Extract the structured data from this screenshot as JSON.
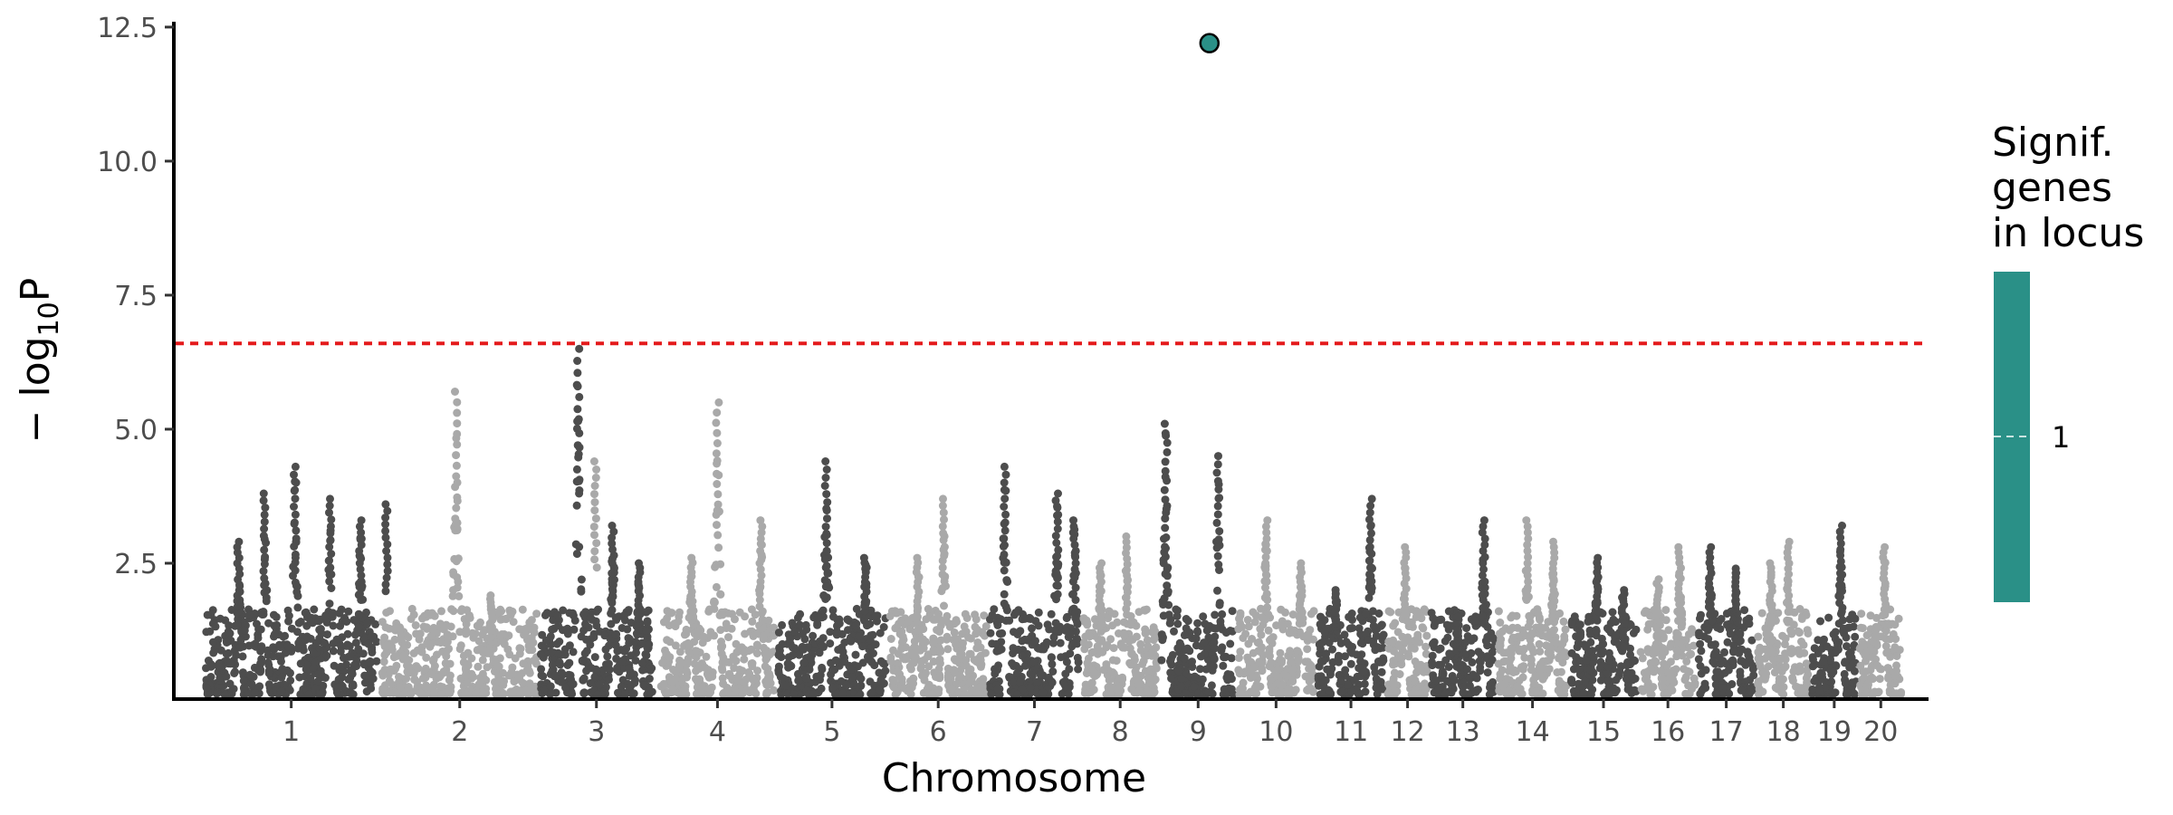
{
  "chart_data": {
    "type": "scatter",
    "subtype": "manhattan",
    "xlabel": "Chromosome",
    "ylabel_main": "− log",
    "ylabel_sub": "10",
    "ylabel_tail": "P",
    "ylim": [
      0,
      12.6
    ],
    "yticks": [
      2.5,
      5.0,
      7.5,
      10.0,
      12.5
    ],
    "ytick_labels": [
      "2.5",
      "5.0",
      "7.5",
      "10.0",
      "12.5"
    ],
    "significance_threshold": 6.6,
    "threshold_color": "#e41a1c",
    "colors": {
      "dark": "#4d4d4d",
      "light": "#a9a9a9",
      "highlight": "#2a9087"
    },
    "chromosomes": [
      {
        "label": "1",
        "start": 0.02,
        "end": 1.99,
        "peaks": [
          [
            0.7,
            3.8
          ],
          [
            1.05,
            4.3
          ],
          [
            1.45,
            3.7
          ],
          [
            1.8,
            3.3
          ],
          [
            2.1,
            3.6
          ],
          [
            0.4,
            2.9
          ]
        ]
      },
      {
        "label": "2",
        "start": 2.05,
        "end": 3.83,
        "peaks": [
          [
            2.9,
            5.7
          ],
          [
            4.5,
            4.4
          ],
          [
            3.3,
            1.9
          ]
        ]
      },
      {
        "label": "3",
        "start": 3.87,
        "end": 5.15,
        "peaks": [
          [
            4.3,
            6.5
          ],
          [
            4.7,
            3.2
          ],
          [
            5.0,
            2.5
          ]
        ]
      },
      {
        "label": "4",
        "start": 5.25,
        "end": 6.55,
        "peaks": [
          [
            5.9,
            5.5
          ],
          [
            6.4,
            3.3
          ],
          [
            5.6,
            2.6
          ]
        ]
      },
      {
        "label": "5",
        "start": 6.6,
        "end": 7.83,
        "peaks": [
          [
            7.15,
            4.4
          ],
          [
            7.6,
            2.6
          ]
        ]
      },
      {
        "label": "6",
        "start": 7.88,
        "end": 8.99,
        "peaks": [
          [
            8.5,
            3.7
          ],
          [
            8.2,
            2.6
          ]
        ]
      },
      {
        "label": "7",
        "start": 9.03,
        "end": 10.05,
        "peaks": [
          [
            9.2,
            4.3
          ],
          [
            9.8,
            3.8
          ],
          [
            10.0,
            3.3
          ]
        ]
      },
      {
        "label": "8",
        "start": 10.1,
        "end": 10.95,
        "peaks": [
          [
            10.6,
            3.0
          ],
          [
            10.3,
            2.5
          ]
        ]
      },
      {
        "label": "9",
        "start": 11.0,
        "end": 11.84,
        "peaks": [
          [
            11.05,
            5.1
          ],
          [
            11.65,
            4.5
          ]
        ]
      },
      {
        "label": "10",
        "start": 11.88,
        "end": 12.75,
        "peaks": [
          [
            12.2,
            3.3
          ],
          [
            12.6,
            2.5
          ]
        ]
      },
      {
        "label": "11",
        "start": 12.8,
        "end": 13.55,
        "peaks": [
          [
            13.4,
            3.7
          ],
          [
            13.0,
            2.0
          ]
        ]
      },
      {
        "label": "12",
        "start": 13.6,
        "end": 14.05,
        "peaks": [
          [
            13.8,
            2.8
          ]
        ]
      },
      {
        "label": "13",
        "start": 14.1,
        "end": 14.82,
        "peaks": [
          [
            14.7,
            3.3
          ],
          [
            14.4,
            1.5
          ]
        ]
      },
      {
        "label": "14",
        "start": 14.87,
        "end": 15.65,
        "peaks": [
          [
            15.2,
            3.3
          ],
          [
            15.5,
            2.9
          ]
        ]
      },
      {
        "label": "15",
        "start": 15.7,
        "end": 16.45,
        "peaks": [
          [
            16.0,
            2.6
          ],
          [
            16.3,
            2.0
          ]
        ]
      },
      {
        "label": "16",
        "start": 16.5,
        "end": 17.13,
        "peaks": [
          [
            16.95,
            2.8
          ],
          [
            16.7,
            2.2
          ]
        ]
      },
      {
        "label": "17",
        "start": 17.17,
        "end": 17.8,
        "peaks": [
          [
            17.3,
            2.8
          ],
          [
            17.6,
            2.4
          ]
        ]
      },
      {
        "label": "18",
        "start": 17.85,
        "end": 18.43,
        "peaks": [
          [
            18.2,
            2.9
          ],
          [
            18.0,
            2.5
          ]
        ]
      },
      {
        "label": "19",
        "start": 18.47,
        "end": 18.98,
        "peaks": [
          [
            18.8,
            3.2
          ]
        ]
      },
      {
        "label": "20",
        "start": 19.02,
        "end": 19.5,
        "peaks": [
          [
            19.3,
            2.8
          ]
        ]
      }
    ],
    "highlighted_points": [
      {
        "chromosome": "9",
        "x": 11.55,
        "y": 12.2
      }
    ],
    "legend": {
      "title": [
        "Signif.",
        "genes",
        "in locus"
      ],
      "label": "1",
      "color": "#2a9087",
      "position": "right"
    }
  }
}
